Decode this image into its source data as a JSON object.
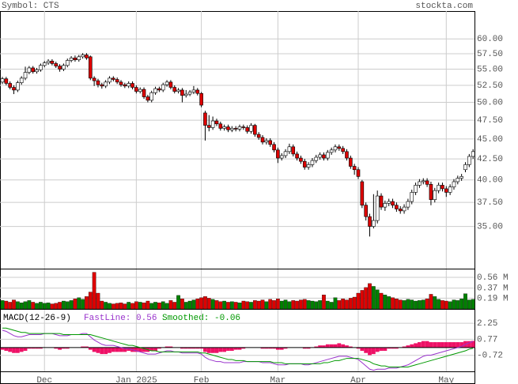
{
  "chart_data": [
    {
      "type": "candlestick",
      "title": "Symbol: CTS",
      "source": "stockta.com",
      "categories": [
        null,
        null,
        null,
        null,
        null,
        null,
        null,
        null,
        null,
        null,
        null,
        "Dec",
        null,
        null,
        null,
        null,
        null,
        null,
        null,
        null,
        null,
        null,
        null,
        null,
        null,
        null,
        null,
        null,
        null,
        null,
        null,
        null,
        null,
        null,
        null,
        "Jan 2025",
        null,
        null,
        null,
        null,
        null,
        null,
        null,
        null,
        null,
        null,
        null,
        null,
        null,
        null,
        null,
        null,
        "Feb",
        null,
        null,
        null,
        null,
        null,
        null,
        null,
        null,
        null,
        null,
        null,
        null,
        null,
        null,
        null,
        null,
        null,
        null,
        null,
        "Mar",
        null,
        null,
        null,
        null,
        null,
        null,
        null,
        null,
        null,
        null,
        null,
        null,
        null,
        null,
        null,
        null,
        null,
        null,
        null,
        null,
        "Apr",
        null,
        null,
        null,
        null,
        null,
        null,
        null,
        null,
        null,
        null,
        null,
        null,
        null,
        null,
        null,
        null,
        null,
        null,
        null,
        null,
        null,
        null,
        "May",
        null,
        null,
        null,
        null,
        null,
        null,
        null
      ],
      "open": [
        53.0,
        53.5,
        52.8,
        52.2,
        51.8,
        52.9,
        53.6,
        54.5,
        55.2,
        54.6,
        54.9,
        55.6,
        56.0,
        56.3,
        55.9,
        55.5,
        55.0,
        55.6,
        56.4,
        56.8,
        56.5,
        57.0,
        57.3,
        57.0,
        53.6,
        53.2,
        52.6,
        52.4,
        53.0,
        53.6,
        53.4,
        53.0,
        52.6,
        52.4,
        52.8,
        52.2,
        51.6,
        51.9,
        50.8,
        50.3,
        51.4,
        52.0,
        51.8,
        52.6,
        53.0,
        52.2,
        51.6,
        51.8,
        51.0,
        51.2,
        51.5,
        51.8,
        51.3,
        48.5,
        46.8,
        46.5,
        47.4,
        47.0,
        46.4,
        46.6,
        46.2,
        46.4,
        46.3,
        46.6,
        46.5,
        46.0,
        46.8,
        45.6,
        45.2,
        44.6,
        44.8,
        44.3,
        43.6,
        42.6,
        42.9,
        43.4,
        44.0,
        43.1,
        42.6,
        42.2,
        41.5,
        41.8,
        42.3,
        42.7,
        43.0,
        42.6,
        43.3,
        43.6,
        44.0,
        43.8,
        43.4,
        42.6,
        41.6,
        41.2,
        39.8,
        37.2,
        36.0,
        35.0,
        35.6,
        38.2,
        37.0,
        37.4,
        37.6,
        37.2,
        36.8,
        36.6,
        37.0,
        37.6,
        38.6,
        39.4,
        39.8,
        39.9,
        39.5,
        37.8,
        38.8,
        39.4,
        39.0,
        38.6,
        39.2,
        39.8,
        40.2,
        41.2,
        41.8,
        42.8
      ],
      "high": [
        53.8,
        53.8,
        53.1,
        52.5,
        53.2,
        53.9,
        55.4,
        55.5,
        55.5,
        55.2,
        55.9,
        56.3,
        56.6,
        56.6,
        56.2,
        55.8,
        55.9,
        56.7,
        57.1,
        57.2,
        57.3,
        57.6,
        57.6,
        57.2,
        53.9,
        53.5,
        52.9,
        53.3,
        53.9,
        53.9,
        53.7,
        53.3,
        52.9,
        53.1,
        53.1,
        52.5,
        52.2,
        52.2,
        51.1,
        51.7,
        52.3,
        52.3,
        52.9,
        53.3,
        53.3,
        52.5,
        52.1,
        52.1,
        51.8,
        51.8,
        52.4,
        52.1,
        51.5,
        48.8,
        48.2,
        48.0,
        47.7,
        47.3,
        46.9,
        46.9,
        46.7,
        46.7,
        46.9,
        46.9,
        46.8,
        47.1,
        47.0,
        45.9,
        45.5,
        45.1,
        45.1,
        44.6,
        43.9,
        43.2,
        43.7,
        44.4,
        44.3,
        43.4,
        42.9,
        42.5,
        42.1,
        42.6,
        43.0,
        43.3,
        43.3,
        43.6,
        43.9,
        44.3,
        44.3,
        44.1,
        43.7,
        42.9,
        41.9,
        41.5,
        40.0,
        37.5,
        36.3,
        38.4,
        38.8,
        38.5,
        37.7,
        37.9,
        37.9,
        37.5,
        37.1,
        37.3,
        37.9,
        38.9,
        39.7,
        40.1,
        40.2,
        40.2,
        39.8,
        39.1,
        39.7,
        39.7,
        39.3,
        39.5,
        40.1,
        40.5,
        40.7,
        42.1,
        43.1,
        43.7
      ],
      "low": [
        52.7,
        52.5,
        51.9,
        51.2,
        51.5,
        52.6,
        53.3,
        54.2,
        54.3,
        54.3,
        54.6,
        55.3,
        55.7,
        55.6,
        55.2,
        54.6,
        54.7,
        55.3,
        56.1,
        56.2,
        56.2,
        56.7,
        56.5,
        53.3,
        52.4,
        52.2,
        52.0,
        52.1,
        52.7,
        53.1,
        52.7,
        52.3,
        52.1,
        52.1,
        51.9,
        51.3,
        51.3,
        50.5,
        50.0,
        50.0,
        51.1,
        51.5,
        51.5,
        52.3,
        51.9,
        51.3,
        51.3,
        50.0,
        50.7,
        50.9,
        51.2,
        51.0,
        49.3,
        44.8,
        46.0,
        46.2,
        46.7,
        46.1,
        46.1,
        45.9,
        45.9,
        46.0,
        46.0,
        46.2,
        45.7,
        45.7,
        45.3,
        44.9,
        44.3,
        44.3,
        44.0,
        43.3,
        42.0,
        42.3,
        42.6,
        43.1,
        42.8,
        42.3,
        41.9,
        41.2,
        41.2,
        41.5,
        42.0,
        42.4,
        42.3,
        42.3,
        43.0,
        43.3,
        43.5,
        43.1,
        42.3,
        41.3,
        40.6,
        40.1,
        36.9,
        35.6,
        34.0,
        34.8,
        35.3,
        36.7,
        36.6,
        37.1,
        36.9,
        36.5,
        36.3,
        36.3,
        36.7,
        37.3,
        38.3,
        39.1,
        39.5,
        39.2,
        37.2,
        37.5,
        38.5,
        38.7,
        38.1,
        38.3,
        38.9,
        39.5,
        39.9,
        40.9,
        41.5,
        42.5
      ],
      "close": [
        53.5,
        52.8,
        52.2,
        51.8,
        52.9,
        53.6,
        54.5,
        55.2,
        54.6,
        54.9,
        55.6,
        56.0,
        56.3,
        55.9,
        55.5,
        55.0,
        55.6,
        56.4,
        56.8,
        56.5,
        57.0,
        57.3,
        56.8,
        53.6,
        53.2,
        52.6,
        52.4,
        53.0,
        53.6,
        53.4,
        53.0,
        52.6,
        52.4,
        52.8,
        52.2,
        51.6,
        51.9,
        50.8,
        50.3,
        51.4,
        52.0,
        51.8,
        52.6,
        53.0,
        52.2,
        51.6,
        51.8,
        51.0,
        51.2,
        51.5,
        51.8,
        51.3,
        49.6,
        46.8,
        46.5,
        47.4,
        47.0,
        46.4,
        46.6,
        46.2,
        46.4,
        46.3,
        46.6,
        46.5,
        46.0,
        46.8,
        45.6,
        45.2,
        44.6,
        44.8,
        44.3,
        43.6,
        42.6,
        42.9,
        43.4,
        44.0,
        43.1,
        42.6,
        42.2,
        41.5,
        41.8,
        42.3,
        42.7,
        43.0,
        42.6,
        43.3,
        43.6,
        44.0,
        43.8,
        43.4,
        42.6,
        41.6,
        41.2,
        40.4,
        37.2,
        36.0,
        35.0,
        35.6,
        38.2,
        37.0,
        37.4,
        37.6,
        37.2,
        36.8,
        36.6,
        37.0,
        37.6,
        38.6,
        39.4,
        39.8,
        39.9,
        39.5,
        37.8,
        38.8,
        39.4,
        39.0,
        38.6,
        39.2,
        39.8,
        40.2,
        40.4,
        41.8,
        42.8,
        43.4
      ],
      "ylim": [
        31,
        65
      ],
      "log_scale": true,
      "yticks": [
        {
          "value": 35,
          "label": "35.00"
        },
        {
          "value": 37.5,
          "label": "37.50"
        },
        {
          "value": 40,
          "label": "40.00"
        },
        {
          "value": 42.5,
          "label": "42.50"
        },
        {
          "value": 45,
          "label": "45.00"
        },
        {
          "value": 47.5,
          "label": "47.50"
        },
        {
          "value": 50,
          "label": "50.00"
        },
        {
          "value": 52.5,
          "label": "52.50"
        },
        {
          "value": 55,
          "label": "55.00"
        },
        {
          "value": 57.5,
          "label": "57.50"
        },
        {
          "value": 60,
          "label": "60.00"
        }
      ],
      "grid": true,
      "up_color": "#ffffff",
      "down_color": "#dd0000"
    },
    {
      "type": "bar",
      "values": [
        0.15,
        0.14,
        0.12,
        0.16,
        0.13,
        0.11,
        0.13,
        0.15,
        0.12,
        0.1,
        0.12,
        0.1,
        0.11,
        0.09,
        0.1,
        0.12,
        0.14,
        0.13,
        0.15,
        0.18,
        0.2,
        0.17,
        0.22,
        0.3,
        0.65,
        0.28,
        0.14,
        0.12,
        0.1,
        0.09,
        0.1,
        0.11,
        0.09,
        0.12,
        0.1,
        0.13,
        0.12,
        0.11,
        0.14,
        0.1,
        0.12,
        0.11,
        0.13,
        0.1,
        0.15,
        0.12,
        0.24,
        0.18,
        0.12,
        0.14,
        0.16,
        0.18,
        0.2,
        0.22,
        0.19,
        0.17,
        0.15,
        0.13,
        0.14,
        0.12,
        0.13,
        0.12,
        0.11,
        0.14,
        0.13,
        0.12,
        0.15,
        0.14,
        0.16,
        0.13,
        0.17,
        0.15,
        0.18,
        0.14,
        0.16,
        0.13,
        0.15,
        0.14,
        0.16,
        0.17,
        0.15,
        0.14,
        0.13,
        0.15,
        0.25,
        0.14,
        0.12,
        0.2,
        0.15,
        0.18,
        0.16,
        0.19,
        0.21,
        0.28,
        0.33,
        0.38,
        0.45,
        0.4,
        0.34,
        0.28,
        0.25,
        0.22,
        0.2,
        0.18,
        0.16,
        0.15,
        0.17,
        0.16,
        0.14,
        0.15,
        0.16,
        0.18,
        0.26,
        0.22,
        0.17,
        0.15,
        0.14,
        0.13,
        0.16,
        0.15,
        0.18,
        0.27,
        0.16,
        0.17
      ],
      "ylim": [
        0,
        0.7
      ],
      "yticks": [
        {
          "value": 0.19,
          "label": "0.19 M"
        },
        {
          "value": 0.37,
          "label": "0.37 M"
        },
        {
          "value": 0.56,
          "label": "0.56 M"
        }
      ],
      "up_color": "#008000",
      "down_color": "#dd0000"
    },
    {
      "type": "line",
      "title": "MACD(12-26-9)",
      "ylim": [
        -2.2,
        3.5
      ],
      "yticks": [
        2.25,
        0.77,
        -0.72
      ],
      "series": [
        {
          "name": "FastLine: 0.56",
          "color": "#9933cc",
          "values": [
            1.6,
            1.5,
            1.3,
            1.1,
            1.0,
            1.0,
            1.1,
            1.2,
            1.2,
            1.2,
            1.2,
            1.3,
            1.3,
            1.3,
            1.2,
            1.1,
            1.1,
            1.1,
            1.2,
            1.2,
            1.2,
            1.3,
            1.3,
            1.0,
            0.7,
            0.5,
            0.3,
            0.2,
            0.2,
            0.2,
            0.1,
            0.0,
            -0.1,
            -0.1,
            -0.2,
            -0.3,
            -0.4,
            -0.5,
            -0.6,
            -0.6,
            -0.6,
            -0.5,
            -0.4,
            -0.3,
            -0.3,
            -0.4,
            -0.4,
            -0.5,
            -0.5,
            -0.5,
            -0.5,
            -0.5,
            -0.6,
            -0.9,
            -1.1,
            -1.2,
            -1.3,
            -1.3,
            -1.4,
            -1.4,
            -1.4,
            -1.4,
            -1.4,
            -1.3,
            -1.3,
            -1.3,
            -1.3,
            -1.3,
            -1.4,
            -1.4,
            -1.4,
            -1.5,
            -1.6,
            -1.6,
            -1.6,
            -1.5,
            -1.5,
            -1.5,
            -1.5,
            -1.6,
            -1.6,
            -1.5,
            -1.4,
            -1.3,
            -1.2,
            -1.1,
            -1.0,
            -0.9,
            -0.8,
            -0.8,
            -0.8,
            -0.9,
            -1.0,
            -1.1,
            -1.4,
            -1.7,
            -2.0,
            -2.1,
            -2.0,
            -2.0,
            -2.0,
            -1.9,
            -1.9,
            -1.9,
            -1.8,
            -1.7,
            -1.6,
            -1.4,
            -1.2,
            -1.0,
            -0.8,
            -0.7,
            -0.7,
            -0.6,
            -0.5,
            -0.4,
            -0.3,
            -0.2,
            -0.1,
            0.0,
            0.1,
            0.3,
            0.45,
            0.56
          ]
        },
        {
          "name": "Smoothed: -0.06",
          "color": "#009900",
          "values": [
            1.8,
            1.8,
            1.7,
            1.6,
            1.5,
            1.4,
            1.4,
            1.3,
            1.3,
            1.3,
            1.3,
            1.3,
            1.3,
            1.3,
            1.3,
            1.3,
            1.2,
            1.2,
            1.2,
            1.2,
            1.2,
            1.2,
            1.2,
            1.2,
            1.1,
            1.0,
            0.9,
            0.8,
            0.7,
            0.6,
            0.5,
            0.4,
            0.3,
            0.2,
            0.2,
            0.1,
            0.0,
            -0.1,
            -0.2,
            -0.3,
            -0.3,
            -0.4,
            -0.4,
            -0.4,
            -0.4,
            -0.4,
            -0.4,
            -0.4,
            -0.4,
            -0.4,
            -0.4,
            -0.4,
            -0.5,
            -0.5,
            -0.6,
            -0.7,
            -0.8,
            -0.9,
            -1.0,
            -1.1,
            -1.1,
            -1.2,
            -1.2,
            -1.2,
            -1.3,
            -1.3,
            -1.3,
            -1.3,
            -1.3,
            -1.3,
            -1.3,
            -1.4,
            -1.4,
            -1.4,
            -1.5,
            -1.5,
            -1.5,
            -1.5,
            -1.5,
            -1.5,
            -1.5,
            -1.5,
            -1.5,
            -1.5,
            -1.4,
            -1.4,
            -1.3,
            -1.2,
            -1.2,
            -1.1,
            -1.0,
            -1.0,
            -1.0,
            -1.0,
            -1.1,
            -1.2,
            -1.3,
            -1.5,
            -1.6,
            -1.7,
            -1.7,
            -1.8,
            -1.8,
            -1.8,
            -1.8,
            -1.8,
            -1.8,
            -1.7,
            -1.6,
            -1.5,
            -1.4,
            -1.3,
            -1.2,
            -1.1,
            -1.0,
            -0.9,
            -0.8,
            -0.7,
            -0.6,
            -0.5,
            -0.4,
            -0.3,
            -0.15,
            -0.06
          ]
        }
      ],
      "histogram": {
        "color": "#ee1166",
        "values": [
          -0.2,
          -0.3,
          -0.4,
          -0.5,
          -0.5,
          -0.4,
          -0.3,
          -0.1,
          -0.1,
          -0.1,
          -0.1,
          0,
          0,
          0,
          -0.1,
          -0.2,
          -0.1,
          -0.1,
          0,
          0,
          0,
          0.1,
          0.1,
          -0.2,
          -0.4,
          -0.5,
          -0.6,
          -0.6,
          -0.5,
          -0.4,
          -0.4,
          -0.4,
          -0.4,
          -0.3,
          -0.4,
          -0.4,
          -0.4,
          -0.4,
          -0.4,
          -0.3,
          -0.3,
          -0.1,
          0,
          0.1,
          0.1,
          0,
          0,
          -0.1,
          -0.1,
          -0.1,
          -0.1,
          -0.1,
          -0.1,
          -0.4,
          -0.5,
          -0.5,
          -0.5,
          -0.4,
          -0.4,
          -0.3,
          -0.3,
          -0.2,
          -0.2,
          -0.1,
          0,
          0,
          0,
          0,
          -0.1,
          -0.1,
          -0.1,
          -0.1,
          -0.2,
          -0.2,
          -0.1,
          0,
          0,
          0,
          0,
          -0.1,
          -0.1,
          0,
          0.1,
          0.2,
          0.2,
          0.3,
          0.3,
          0.3,
          0.4,
          0.3,
          0.2,
          0.1,
          0,
          -0.1,
          -0.3,
          -0.5,
          -0.7,
          -0.6,
          -0.4,
          -0.3,
          -0.3,
          -0.1,
          -0.1,
          -0.1,
          0,
          0.1,
          0.2,
          0.3,
          0.4,
          0.5,
          0.6,
          0.6,
          0.5,
          0.5,
          0.5,
          0.5,
          0.5,
          0.5,
          0.5,
          0.5,
          0.5,
          0.6,
          0.6,
          0.62
        ]
      }
    }
  ]
}
